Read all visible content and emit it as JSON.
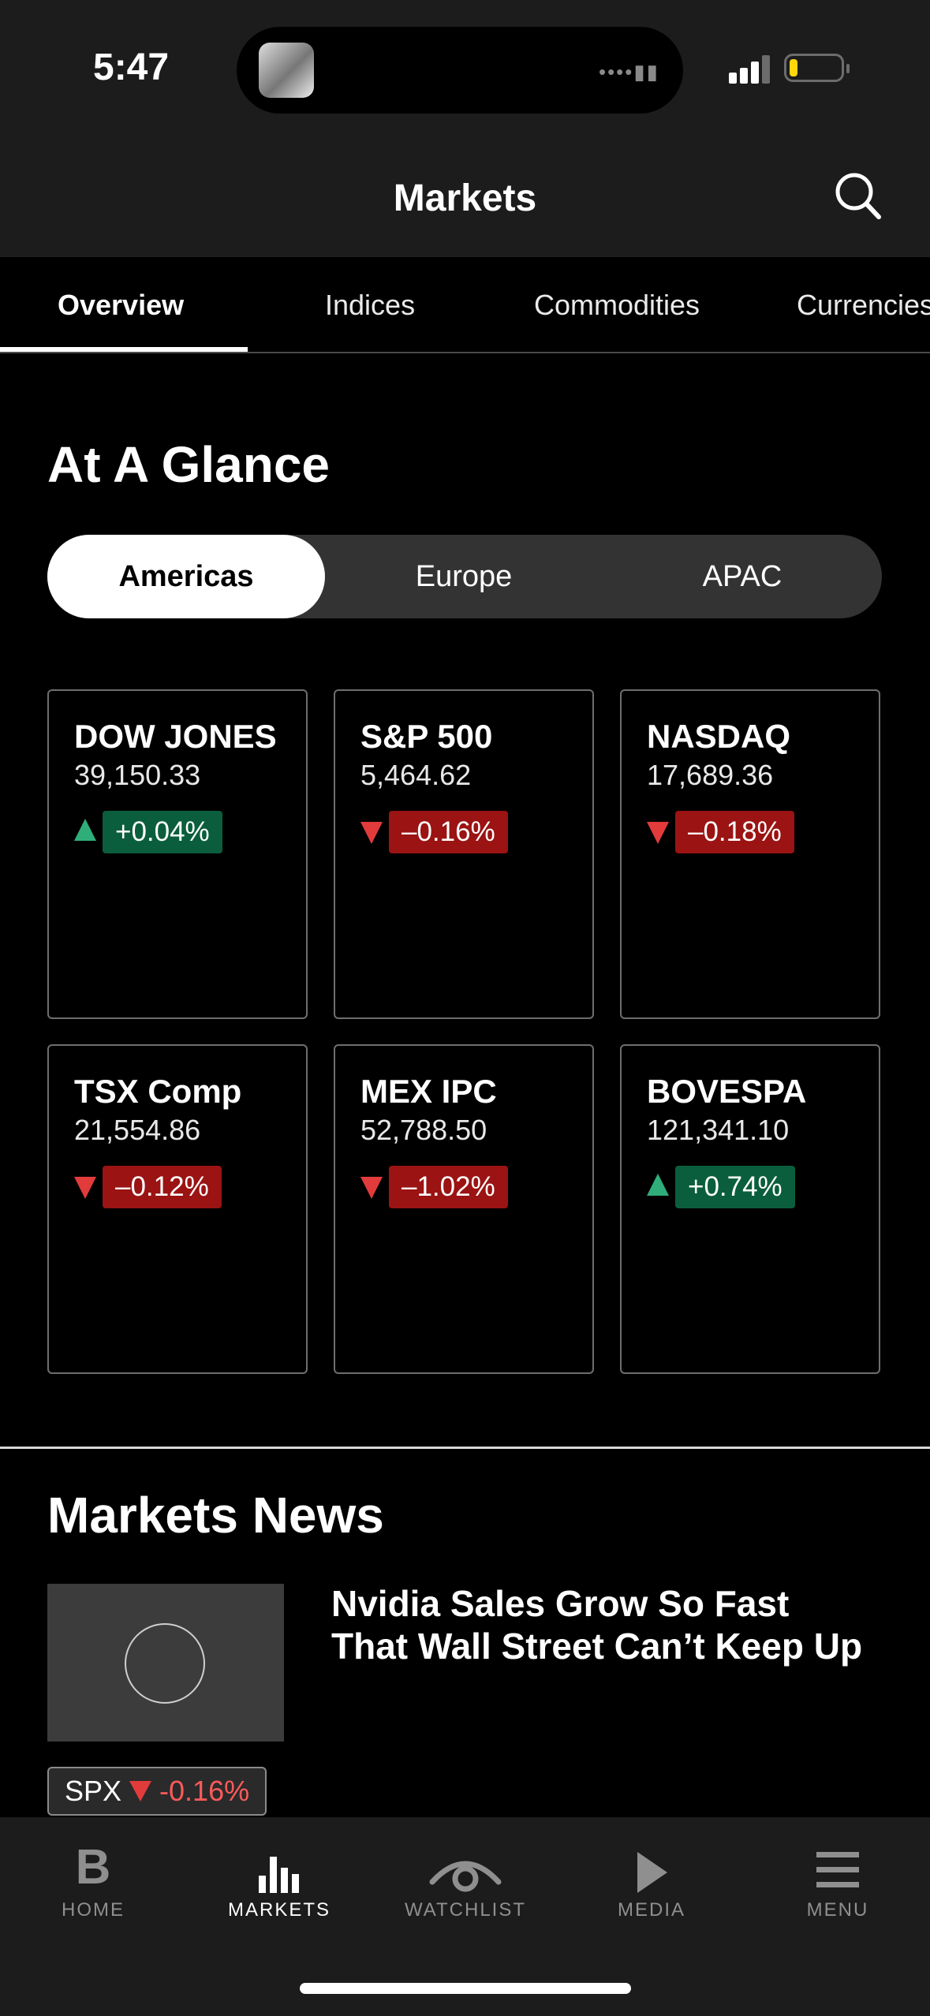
{
  "status_bar": {
    "time": "5:47"
  },
  "header": {
    "title": "Markets"
  },
  "tabs": [
    {
      "label": "Overview",
      "active": true
    },
    {
      "label": "Indices",
      "active": false
    },
    {
      "label": "Commodities",
      "active": false
    },
    {
      "label": "Currencies",
      "active": false
    }
  ],
  "at_a_glance": {
    "heading": "At A Glance",
    "regions": [
      {
        "label": "Americas",
        "active": true
      },
      {
        "label": "Europe",
        "active": false
      },
      {
        "label": "APAC",
        "active": false
      }
    ],
    "cards": [
      {
        "name": "DOW JONES",
        "value": "39,150.33",
        "change": "+0.04%",
        "direction": "up"
      },
      {
        "name": "S&P 500",
        "value": "5,464.62",
        "change": "–0.16%",
        "direction": "down"
      },
      {
        "name": "NASDAQ",
        "value": "17,689.36",
        "change": "–0.18%",
        "direction": "down"
      },
      {
        "name": "TSX Comp",
        "value": "21,554.86",
        "change": "–0.12%",
        "direction": "down"
      },
      {
        "name": "MEX IPC",
        "value": "52,788.50",
        "change": "–1.02%",
        "direction": "down"
      },
      {
        "name": "BOVESPA",
        "value": "121,341.10",
        "change": "+0.74%",
        "direction": "up"
      }
    ]
  },
  "news": {
    "heading": "Markets News",
    "articles": [
      {
        "headline": "Nvidia Sales Grow So Fast That Wall Street Can’t Keep Up",
        "ticker": "SPX",
        "ticker_change": "-0.16%"
      }
    ]
  },
  "bottom_nav": [
    {
      "label": "HOME",
      "icon": "bloomberg-b-icon",
      "active": false
    },
    {
      "label": "MARKETS",
      "icon": "bar-chart-icon",
      "active": true
    },
    {
      "label": "WATCHLIST",
      "icon": "eye-icon",
      "active": false
    },
    {
      "label": "MEDIA",
      "icon": "play-icon",
      "active": false
    },
    {
      "label": "MENU",
      "icon": "hamburger-menu-icon",
      "active": false
    }
  ],
  "colors": {
    "up_arrow": "#2fae7a",
    "up_badge": "#0b5e3d",
    "down_arrow": "#e23b3b",
    "down_badge": "#9b1313",
    "header_bg": "#1c1c1c"
  }
}
